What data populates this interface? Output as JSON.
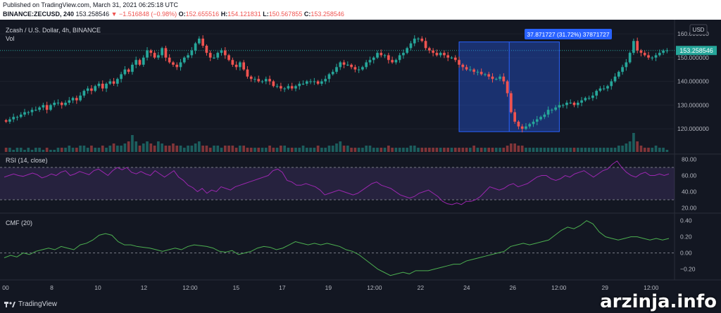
{
  "header": {
    "published": "Published on TradingView.com, March 31, 2021 06:25:18 UTC",
    "symbol": "BINANCE:ZECUSD, 240",
    "price": "153.258546",
    "change": "▼ −1.516848 (−0.98%)",
    "o_label": "O:",
    "o": "152.655516",
    "h_label": "H:",
    "h": "154.121831",
    "l_label": "L:",
    "l": "150.567855",
    "c_label": "C:",
    "c": "153.258546"
  },
  "chart_title": "Zcash / U.S. Dollar, 4h, BINANCE",
  "vol_label": "Vol",
  "currency": "USD",
  "price_tag": "153.258546",
  "measure_label": "37.871727 (31.72%) 37871727",
  "rsi_label": "RSI (14, close)",
  "cmf_label": "CMF (20)",
  "footer_brand": "TradingView",
  "watermark": "arzinja.info",
  "colors": {
    "up": "#26a69a",
    "down": "#ef5350",
    "rsi": "#9c27b0",
    "cmf": "#4caf50",
    "measure": "#2962ff"
  },
  "chart_data": [
    {
      "type": "candlestick",
      "title": "Zcash / U.S. Dollar, 4h, BINANCE",
      "x_ticks": [
        "00",
        "8",
        "10",
        "12",
        "12:00",
        "15",
        "17",
        "19",
        "12:00",
        "22",
        "24",
        "26",
        "12:00",
        "29",
        "12:00"
      ],
      "y_ticks": [
        "160.000000",
        "150.000000",
        "140.000000",
        "130.000000",
        "120.000000"
      ],
      "ylim": [
        115,
        163
      ],
      "close": [
        123,
        124,
        125,
        125,
        126,
        127,
        127,
        128,
        128,
        129,
        130,
        128,
        130,
        131,
        131,
        130,
        131,
        132,
        133,
        132,
        134,
        136,
        137,
        136,
        138,
        139,
        137,
        139,
        140,
        139,
        141,
        143,
        145,
        144,
        147,
        149,
        147,
        150,
        153,
        152,
        150,
        151,
        154,
        150,
        148,
        147,
        146,
        148,
        150,
        151,
        153,
        156,
        158,
        155,
        152,
        150,
        150,
        152,
        153,
        151,
        149,
        147,
        146,
        148,
        145,
        142,
        141,
        141,
        140,
        140,
        141,
        140,
        138,
        138,
        137,
        137,
        138,
        137,
        138,
        139,
        139,
        140,
        140,
        140,
        139,
        140,
        141,
        143,
        144,
        146,
        148,
        147,
        147,
        146,
        145,
        145,
        146,
        148,
        149,
        150,
        152,
        151,
        151,
        149,
        148,
        149,
        151,
        152,
        154,
        156,
        158,
        158,
        157,
        154,
        153,
        152,
        151,
        152,
        151,
        150,
        150,
        149,
        147,
        146,
        145,
        145,
        144,
        144,
        143,
        143,
        142,
        141,
        141,
        142,
        140,
        135,
        127,
        123,
        121,
        120,
        121,
        122,
        123,
        124,
        125,
        126,
        128,
        128,
        129,
        130,
        130,
        131,
        131,
        130,
        131,
        132,
        133,
        133,
        134,
        136,
        137,
        137,
        138,
        140,
        142,
        144,
        146,
        148,
        152,
        157,
        153,
        152,
        151,
        150,
        150,
        151,
        152,
        153,
        153
      ],
      "volume": [
        2,
        2,
        1,
        2,
        2,
        1,
        2,
        1,
        2,
        2,
        1,
        2,
        1,
        1,
        2,
        2,
        2,
        3,
        2,
        2,
        3,
        3,
        2,
        3,
        2,
        2,
        3,
        2,
        3,
        4,
        3,
        3,
        4,
        5,
        8,
        5,
        3,
        4,
        5,
        4,
        3,
        5,
        4,
        3,
        3,
        4,
        3,
        3,
        2,
        3,
        3,
        4,
        5,
        3,
        3,
        2,
        3,
        3,
        2,
        3,
        3,
        3,
        2,
        3,
        3,
        2,
        2,
        2,
        2,
        2,
        2,
        3,
        2,
        2,
        3,
        3,
        2,
        2,
        2,
        2,
        3,
        2,
        2,
        2,
        3,
        2,
        2,
        3,
        3,
        4,
        5,
        3,
        3,
        2,
        2,
        2,
        2,
        3,
        3,
        2,
        2,
        2,
        2,
        3,
        2,
        2,
        2,
        2,
        2,
        3,
        3,
        2,
        2,
        2,
        2,
        2,
        2,
        2,
        2,
        2,
        2,
        2,
        2,
        2,
        2,
        2,
        3,
        2,
        2,
        2,
        2,
        2,
        2,
        2,
        2,
        3,
        4,
        4,
        3,
        3,
        2,
        2,
        2,
        2,
        2,
        2,
        2,
        2,
        2,
        2,
        2,
        2,
        2,
        2,
        2,
        2,
        2,
        2,
        2,
        2,
        2,
        2,
        2,
        2,
        2,
        3,
        3,
        4,
        5,
        9,
        5,
        3,
        2,
        2,
        2,
        3,
        2,
        2,
        1
      ],
      "measure": {
        "y_from": 118.8,
        "y_to": 156.6,
        "label": "37.871727 (31.72%) 37871727"
      }
    },
    {
      "type": "line",
      "title": "RSI (14, close)",
      "y_ticks": [
        "80.00",
        "60.00",
        "40.00",
        "20.00"
      ],
      "ylim": [
        16,
        84
      ],
      "bands": [
        70,
        30
      ],
      "values": [
        58,
        60,
        62,
        60,
        59,
        61,
        63,
        61,
        57,
        59,
        62,
        60,
        64,
        66,
        60,
        62,
        65,
        63,
        61,
        66,
        68,
        64,
        60,
        66,
        70,
        67,
        70,
        64,
        62,
        65,
        62,
        60,
        66,
        62,
        58,
        62,
        66,
        58,
        54,
        48,
        45,
        40,
        44,
        38,
        42,
        40,
        46,
        44,
        42,
        46,
        48,
        50,
        52,
        54,
        56,
        58,
        60,
        66,
        68,
        64,
        54,
        52,
        48,
        48,
        50,
        48,
        46,
        42,
        36,
        38,
        40,
        42,
        40,
        38,
        36,
        38,
        42,
        46,
        50,
        52,
        48,
        46,
        44,
        40,
        36,
        34,
        32,
        34,
        38,
        40,
        42,
        38,
        34,
        28,
        25,
        24,
        26,
        24,
        28,
        28,
        30,
        34,
        40,
        46,
        44,
        42,
        44,
        48,
        50,
        46,
        48,
        50,
        54,
        58,
        60,
        60,
        56,
        54,
        56,
        60,
        58,
        62,
        64,
        66,
        62,
        58,
        62,
        66,
        68,
        74,
        78,
        70,
        64,
        60,
        58,
        62,
        64,
        60,
        60,
        62,
        60,
        62
      ],
      "line_color": "#9c27b0"
    },
    {
      "type": "line",
      "title": "CMF (20)",
      "y_ticks": [
        "0.40",
        "0.20",
        "0.00",
        "−0.20"
      ],
      "ylim": [
        -0.3,
        0.45
      ],
      "zero_line": 0,
      "values": [
        -0.06,
        -0.03,
        -0.05,
        0,
        -0.02,
        0.02,
        0.04,
        0.06,
        0.04,
        0.08,
        0.06,
        0.04,
        0.1,
        0.12,
        0.16,
        0.22,
        0.24,
        0.22,
        0.14,
        0.1,
        0.1,
        0.08,
        0.07,
        0.06,
        0.04,
        0.02,
        0.04,
        0.06,
        0.04,
        0.08,
        0.1,
        0.09,
        0.08,
        0.06,
        0.02,
        0.01,
        0.03,
        -0.02,
        0,
        0.02,
        0.06,
        0.08,
        0.07,
        0.04,
        0.06,
        0.1,
        0.14,
        0.12,
        0.1,
        0.12,
        0.1,
        0.12,
        0.1,
        0.08,
        0.04,
        0.02,
        -0.02,
        -0.08,
        -0.14,
        -0.2,
        -0.24,
        -0.28,
        -0.26,
        -0.24,
        -0.26,
        -0.22,
        -0.22,
        -0.22,
        -0.2,
        -0.18,
        -0.16,
        -0.14,
        -0.14,
        -0.1,
        -0.08,
        -0.06,
        -0.04,
        -0.02,
        0,
        0.02,
        0.08,
        0.1,
        0.12,
        0.1,
        0.12,
        0.14,
        0.16,
        0.22,
        0.28,
        0.32,
        0.3,
        0.34,
        0.4,
        0.36,
        0.26,
        0.2,
        0.18,
        0.16,
        0.18,
        0.2,
        0.2,
        0.18,
        0.16,
        0.18,
        0.16,
        0.18
      ],
      "line_color": "#4caf50"
    }
  ]
}
